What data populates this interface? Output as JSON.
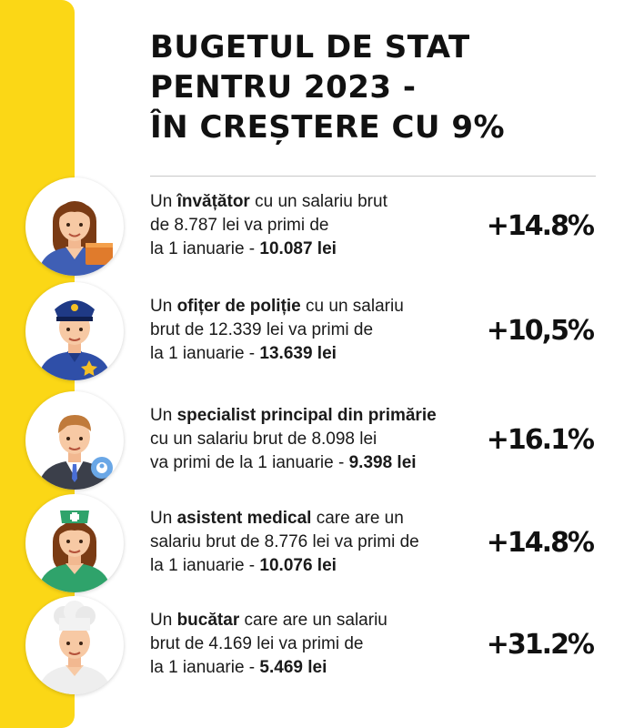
{
  "title": {
    "line1": "BUGETUL DE STAT",
    "line2": "PENTRU 2023 -",
    "line3": "ÎN CREȘTERE CU 9%"
  },
  "colors": {
    "accent": "#fbd716",
    "text": "#111111"
  },
  "items": [
    {
      "icon": "teacher-icon",
      "prefix": "Un ",
      "role": "învățător",
      "line1_rest": " cu un salariu brut",
      "line2": "de 8.787 lei va primi de",
      "line3_prefix": "la 1 ianuarie  - ",
      "amount": "10.087 lei",
      "increase": "+14.8%"
    },
    {
      "icon": "police-officer-icon",
      "prefix": "Un ",
      "role": "ofițer de poliție",
      "line1_rest": " cu un salariu",
      "line2": "brut de 12.339 lei va primi de",
      "line3_prefix": "la 1 ianuarie - ",
      "amount": "13.639 lei",
      "increase": "+10,5%"
    },
    {
      "icon": "city-hall-specialist-icon",
      "prefix": "Un ",
      "role": "specialist principal din primărie",
      "line1_rest": "",
      "line2": "cu un salariu brut de 8.098 lei",
      "line3_prefix": "va primi de la 1 ianuarie - ",
      "amount": "9.398 lei",
      "increase": "+16.1%"
    },
    {
      "icon": "nurse-icon",
      "prefix": "Un ",
      "role": "asistent medical",
      "line1_rest": " care are un",
      "line2": "salariu brut de 8.776 lei va primi de",
      "line3_prefix": "la 1 ianuarie - ",
      "amount": "10.076 lei",
      "increase": "+14.8%"
    },
    {
      "icon": "cook-icon",
      "prefix": "Un ",
      "role": "bucătar",
      "line1_rest": " care are un salariu",
      "line2": "brut de 4.169 lei va primi de",
      "line3_prefix": "la 1 ianuarie - ",
      "amount": "5.469 lei",
      "increase": "+31.2%"
    }
  ]
}
